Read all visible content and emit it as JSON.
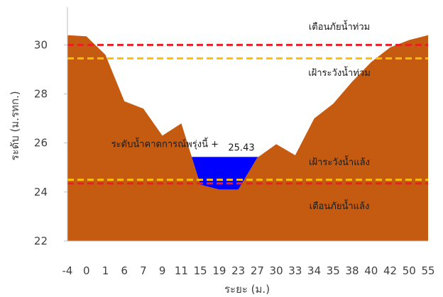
{
  "chart_data": {
    "type": "area",
    "categories": [
      "-4",
      "0",
      "1",
      "6",
      "7",
      "9",
      "11",
      "15",
      "19",
      "23",
      "27",
      "30",
      "33",
      "34",
      "35",
      "38",
      "40",
      "42",
      "50",
      "55"
    ],
    "ground": [
      30.4,
      30.35,
      29.6,
      27.7,
      27.4,
      26.3,
      26.8,
      24.3,
      24.1,
      24.1,
      25.4,
      25.95,
      25.5,
      27.0,
      27.6,
      28.5,
      29.3,
      29.9,
      30.2,
      30.4
    ],
    "water_level": 25.43,
    "water_level_label": "ระดับน้ำคาดการณ์พรุ่งนี้ +",
    "water_level_value": "25.43",
    "xlabel": "ระยะ (ม.)",
    "ylabel": "ระดับ (ม.รทก.)",
    "ylim": [
      22,
      31.4
    ],
    "yticks": [
      "22",
      "24",
      "26",
      "28",
      "30"
    ],
    "thresholds": [
      {
        "value": 30.0,
        "label": "เตือนภัยน้ำท่วม",
        "color": "#ee1c25",
        "style": "dashed"
      },
      {
        "value": 29.45,
        "label": "เฝ้าระวังน้ำท่วม",
        "color": "#ffc000",
        "style": "dashed"
      },
      {
        "value": 24.5,
        "label": "เฝ้าระวังน้ำแล้ง",
        "color": "#ffc000",
        "style": "dashed"
      },
      {
        "value": 24.35,
        "label": "เตือนภัยน้ำแล้ง",
        "color": "#ee1c25",
        "style": "dashed"
      }
    ],
    "colors": {
      "ground": "#c55a11",
      "water": "#0000ff",
      "axis": "#bfbfbf"
    },
    "grid": false,
    "legend": "none"
  }
}
